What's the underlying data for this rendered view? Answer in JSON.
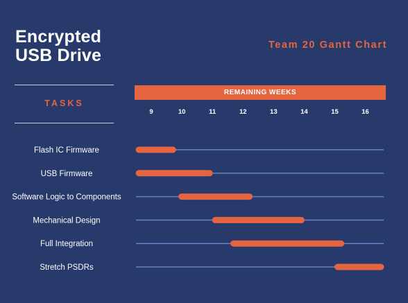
{
  "title": "Encrypted\nUSB Drive",
  "subtitle": "Team 20 Gantt Chart",
  "tasks_header": "TASKS",
  "weeks_header": "REMAINING WEEKS",
  "colors": {
    "background": "#283a6c",
    "accent": "#e4653f",
    "track": "#6a7fc4",
    "text": "#ffffff"
  },
  "chart_data": {
    "type": "bar",
    "orientation": "horizontal-gantt",
    "x_ticks": [
      "9",
      "10",
      "11",
      "12",
      "13",
      "14",
      "15",
      "16"
    ],
    "xlim": [
      8.5,
      16.6
    ],
    "tasks": [
      {
        "name": "Flash IC Firmware",
        "start": 8.5,
        "end": 9.8
      },
      {
        "name": "USB Firmware",
        "start": 8.5,
        "end": 11.0
      },
      {
        "name": "Software Logic to Components",
        "start": 9.9,
        "end": 12.3
      },
      {
        "name": "Mechanical Design",
        "start": 11.0,
        "end": 14.0
      },
      {
        "name": "Full Integration",
        "start": 11.6,
        "end": 15.3
      },
      {
        "name": "Stretch PSDRs",
        "start": 15.0,
        "end": 16.6
      }
    ]
  }
}
